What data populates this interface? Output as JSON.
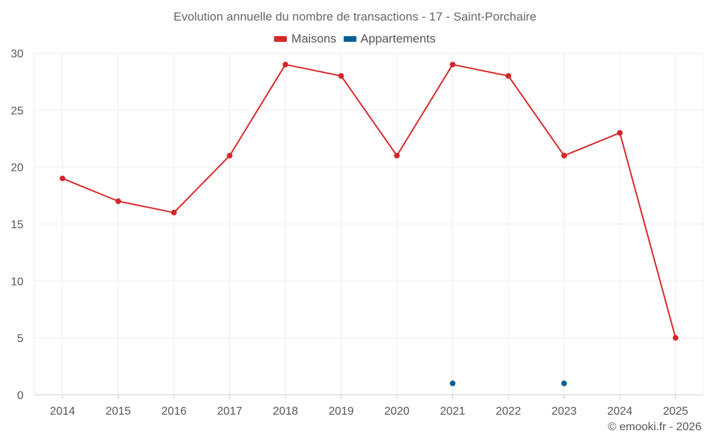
{
  "chart_data": {
    "type": "line",
    "title": "Evolution annuelle du nombre de transactions - 17 - Saint-Porchaire",
    "categories": [
      "2014",
      "2015",
      "2016",
      "2017",
      "2018",
      "2019",
      "2020",
      "2021",
      "2022",
      "2023",
      "2024",
      "2025"
    ],
    "ylim": [
      0,
      30
    ],
    "yticks": [
      0,
      5,
      10,
      15,
      20,
      25,
      30
    ],
    "grid": true,
    "legend_position": "top-center",
    "series": [
      {
        "name": "Maisons",
        "color": "#d62728",
        "values": [
          19,
          17,
          16,
          21,
          29,
          28,
          21,
          29,
          28,
          21,
          23,
          5
        ]
      },
      {
        "name": "Appartements",
        "color": "#0b5f94",
        "values": [
          null,
          null,
          null,
          null,
          null,
          null,
          null,
          1,
          null,
          1,
          null,
          null
        ]
      }
    ]
  },
  "credit": "© emooki.fr - 2026"
}
